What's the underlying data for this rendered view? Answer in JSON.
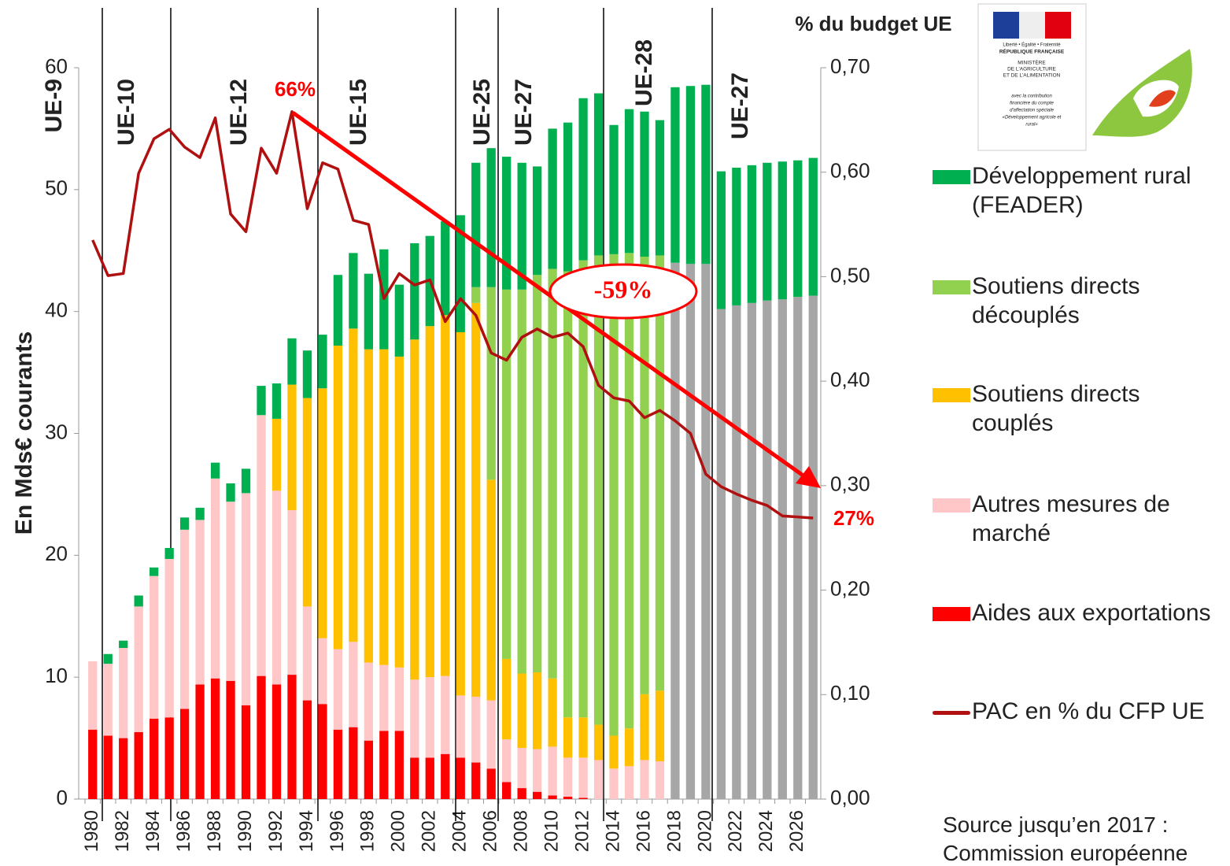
{
  "chart_data": {
    "type": "bar",
    "y_label": "En Mds€ courants",
    "y2_label": "% du budget UE",
    "categories": [
      "1980",
      null,
      "1982",
      null,
      "1984",
      null,
      "1986",
      null,
      "1988",
      null,
      "1990",
      null,
      "1992",
      null,
      "1994",
      null,
      "1996",
      null,
      "1998",
      null,
      "2000",
      null,
      "2002",
      null,
      "2004",
      null,
      "2006",
      null,
      "2008",
      null,
      "2010",
      null,
      "2012",
      null,
      "2014",
      null,
      "2016",
      null,
      "2018",
      null,
      "2020",
      null,
      "2022",
      null,
      "2024",
      null,
      "2026",
      null
    ],
    "ylim": [
      0,
      60
    ],
    "yticks": [
      0,
      10,
      20,
      30,
      40,
      50,
      60
    ],
    "y2lim": [
      0,
      0.7
    ],
    "y2ticks": [
      {
        "value": 0,
        "label": "0,00"
      },
      {
        "value": 0.1,
        "label": "0,10"
      },
      {
        "value": 0.2,
        "label": "0,20"
      },
      {
        "value": 0.3,
        "label": "0,30"
      },
      {
        "value": 0.4,
        "label": "0,40"
      },
      {
        "value": 0.5,
        "label": "0,50"
      },
      {
        "value": 0.6,
        "label": "0,60"
      },
      {
        "value": 0.7,
        "label": "0,70"
      }
    ],
    "stacked": true,
    "series": [
      {
        "name": "Aides aux exportations",
        "color": "#ff0000",
        "values": [
          5.7,
          5.2,
          5.0,
          5.5,
          6.6,
          6.7,
          7.4,
          9.4,
          9.9,
          9.7,
          7.7,
          10.1,
          9.4,
          10.2,
          8.1,
          7.8,
          5.7,
          5.9,
          4.8,
          5.6,
          5.6,
          3.4,
          3.4,
          3.7,
          3.4,
          3.0,
          2.5,
          1.4,
          0.9,
          0.6,
          0.3,
          0.2,
          0.1,
          null,
          null,
          null,
          null,
          null,
          null,
          null,
          null,
          null,
          null,
          null,
          null,
          null,
          null,
          null
        ]
      },
      {
        "name": "Autres mesures de marché",
        "color": "#ffc7c7",
        "values": [
          5.6,
          5.9,
          7.4,
          10.3,
          11.7,
          13.0,
          14.7,
          13.5,
          16.4,
          14.7,
          17.4,
          21.4,
          15.9,
          13.5,
          7.7,
          5.4,
          6.6,
          7.0,
          6.4,
          5.4,
          5.2,
          6.4,
          6.6,
          6.4,
          5.1,
          5.4,
          5.6,
          3.5,
          3.3,
          3.5,
          4.0,
          3.2,
          3.3,
          3.2,
          2.5,
          2.7,
          3.2,
          3.1,
          null,
          null,
          null,
          null,
          null,
          null,
          null,
          null,
          null,
          null
        ]
      },
      {
        "name": "Soutiens directs couplés",
        "color": "#ffc000",
        "values": [
          null,
          null,
          null,
          null,
          null,
          null,
          null,
          null,
          null,
          null,
          null,
          null,
          5.9,
          10.3,
          17.1,
          20.5,
          24.9,
          25.7,
          25.7,
          25.9,
          25.5,
          27.9,
          28.8,
          29.6,
          29.8,
          32.3,
          18.1,
          6.6,
          6.1,
          6.3,
          5.6,
          3.3,
          3.3,
          2.9,
          2.7,
          3.1,
          5.4,
          5.8,
          null,
          null,
          null,
          null,
          null,
          null,
          null,
          null,
          null,
          null
        ]
      },
      {
        "name": "Soutiens directs découplés",
        "color": "#92d050",
        "values": [
          null,
          null,
          null,
          null,
          null,
          null,
          null,
          null,
          null,
          null,
          null,
          null,
          null,
          null,
          null,
          null,
          null,
          null,
          null,
          null,
          null,
          null,
          null,
          null,
          null,
          1.3,
          15.8,
          30.3,
          31.5,
          32.6,
          33.6,
          36.6,
          37.5,
          38.5,
          39.5,
          39.0,
          35.9,
          35.7,
          null,
          null,
          null,
          null,
          null,
          null,
          null,
          null,
          null,
          null
        ]
      },
      {
        "color": "#a6a6a6",
        "values": [
          null,
          null,
          null,
          null,
          null,
          null,
          null,
          null,
          null,
          null,
          null,
          null,
          null,
          null,
          null,
          null,
          null,
          null,
          null,
          null,
          null,
          null,
          null,
          null,
          null,
          null,
          null,
          null,
          null,
          null,
          null,
          null,
          null,
          null,
          null,
          null,
          null,
          null,
          44.0,
          43.9,
          43.9,
          40.2,
          40.5,
          40.7,
          40.9,
          41.0,
          41.2,
          41.3
        ]
      },
      {
        "name": "Développement rural (FEADER)",
        "color": "#00b050",
        "values": [
          null,
          0.8,
          0.6,
          0.9,
          0.7,
          0.9,
          1.0,
          1.0,
          1.3,
          1.5,
          2.0,
          2.4,
          2.9,
          3.8,
          3.9,
          4.4,
          5.8,
          6.2,
          6.2,
          8.2,
          5.9,
          7.9,
          7.4,
          7.7,
          9.6,
          10.2,
          11.4,
          10.9,
          10.4,
          8.9,
          11.5,
          12.2,
          13.3,
          13.3,
          10.6,
          11.8,
          11.9,
          11.1,
          14.4,
          14.6,
          14.7,
          11.3,
          11.3,
          11.3,
          11.3,
          11.3,
          11.2,
          11.3
        ]
      },
      {
        "name": "PAC en % du CFP UE",
        "type": "line",
        "axis": "y2",
        "color": "#b01010",
        "values": [
          0.535,
          0.501,
          0.503,
          0.599,
          0.632,
          0.641,
          0.624,
          0.614,
          0.652,
          0.56,
          0.543,
          0.623,
          0.599,
          0.658,
          0.565,
          0.609,
          0.603,
          0.554,
          0.55,
          0.479,
          0.503,
          0.492,
          0.497,
          0.457,
          0.479,
          0.463,
          0.427,
          0.42,
          0.442,
          0.45,
          0.442,
          0.446,
          0.433,
          0.396,
          0.384,
          0.381,
          0.365,
          0.372,
          0.362,
          0.35,
          0.311,
          0.299,
          0.292,
          0.286,
          0.281,
          0.271,
          0.27,
          0.269
        ]
      }
    ],
    "eras": [
      "UE-9",
      "UE-10",
      "UE-12",
      "UE-15",
      "UE-25",
      "UE-27",
      "UE-28",
      "UE-27"
    ],
    "annotations": [
      "66%",
      "-59%",
      "27%"
    ],
    "source": "Source jusqu’en 2017 : Commission européenne"
  },
  "logo": {
    "motto": "Liberté • Égalité • Fraternité",
    "republic": "RÉPUBLIQUE FRANÇAISE",
    "ministry": [
      "MINISTÈRE",
      "DE L'AGRICULTURE",
      "ET DE L'ALIMENTATION"
    ],
    "note": [
      "avec la contribution",
      "financière du compte",
      "d'affectation spéciale",
      "«Développement agricole et",
      "rural»"
    ]
  }
}
